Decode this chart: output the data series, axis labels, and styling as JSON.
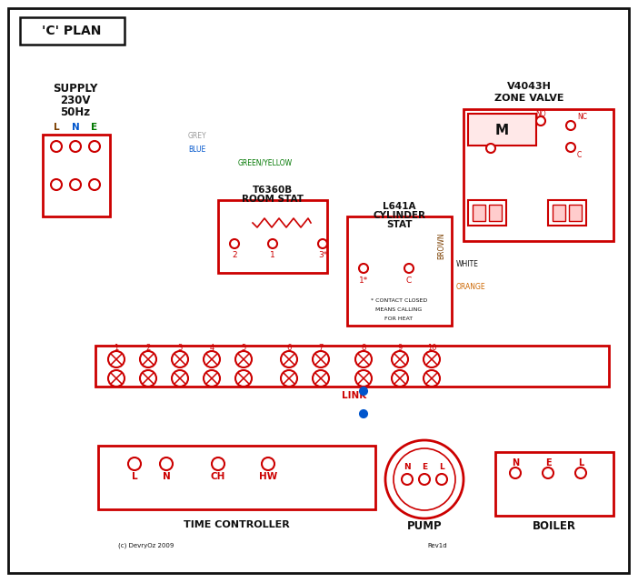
{
  "bg": "#ffffff",
  "R": "#cc0000",
  "B": "#0055cc",
  "G": "#007700",
  "Br": "#7B3F00",
  "Gr": "#999999",
  "Or": "#cc6600",
  "Bk": "#111111",
  "title": "'C' PLAN",
  "supply1": "SUPPLY",
  "supply2": "230V",
  "supply3": "50Hz",
  "lbl_L": "L",
  "lbl_N": "N",
  "lbl_E": "E",
  "zone_v1": "V4043H",
  "zone_v2": "ZONE VALVE",
  "room_s1": "T6360B",
  "room_s2": "ROOM STAT",
  "cyl_s1": "L641A",
  "cyl_s2": "CYLINDER",
  "cyl_s3": "STAT",
  "tc": "TIME CONTROLLER",
  "pump": "PUMP",
  "boiler": "BOILER",
  "link": "LINK",
  "note1": "* CONTACT CLOSED",
  "note2": "MEANS CALLING",
  "note3": "FOR HEAT",
  "copyright": "(c) DevryOz 2009",
  "rev": "Rev1d",
  "lbl_grey": "GREY",
  "lbl_blue": "BLUE",
  "lbl_gy": "GREEN/YELLOW",
  "lbl_brown": "BROWN",
  "lbl_white": "WHITE",
  "lbl_orange": "ORANGE",
  "lbl_NO": "NO",
  "lbl_NC": "NC",
  "lbl_C": "C",
  "lbl_M": "M",
  "term_labels": [
    "1",
    "2",
    "3",
    "4",
    "5",
    "6",
    "7",
    "8",
    "9",
    "10"
  ],
  "tc_labels": [
    "L",
    "N",
    "CH",
    "HW"
  ],
  "pump_labels": [
    "N",
    "E",
    "L"
  ],
  "boiler_labels": [
    "N",
    "E",
    "L"
  ]
}
